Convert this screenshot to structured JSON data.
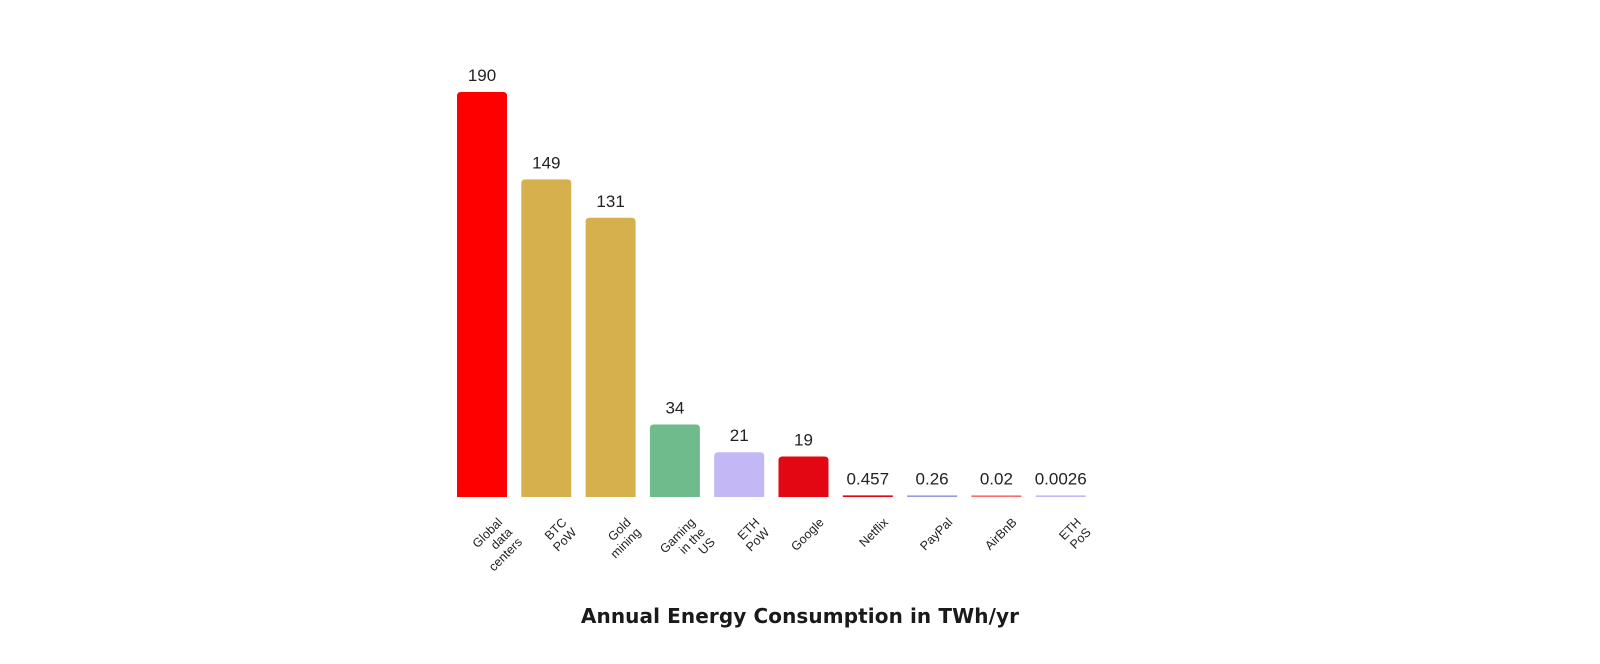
{
  "chart_data": {
    "type": "bar",
    "title": "Annual Energy Consumption in TWh/yr",
    "xlabel": "",
    "ylabel": "",
    "ylim": [
      0,
      190
    ],
    "grid": false,
    "categories": [
      {
        "lines": [
          "Global",
          "data",
          "centers"
        ],
        "value": 190,
        "label": "190",
        "color": "#ff0000"
      },
      {
        "lines": [
          "BTC",
          "PoW"
        ],
        "value": 149,
        "label": "149",
        "color": "#d6b04c"
      },
      {
        "lines": [
          "Gold",
          "mining"
        ],
        "value": 131,
        "label": "131",
        "color": "#d6b04c"
      },
      {
        "lines": [
          "Gaming",
          "in the",
          "US"
        ],
        "value": 34,
        "label": "34",
        "color": "#6fbb8b"
      },
      {
        "lines": [
          "ETH",
          "PoW"
        ],
        "value": 21,
        "label": "21",
        "color": "#c3b8f5"
      },
      {
        "lines": [
          "Google"
        ],
        "value": 19,
        "label": "19",
        "color": "#e30613"
      },
      {
        "lines": [
          "Netflix"
        ],
        "value": 0.457,
        "label": "0.457",
        "color": "#e30613"
      },
      {
        "lines": [
          "PayPal"
        ],
        "value": 0.26,
        "label": "0.26",
        "color": "#9a9ae0"
      },
      {
        "lines": [
          "AirBnB"
        ],
        "value": 0.02,
        "label": "0.02",
        "color": "#ff6b6b"
      },
      {
        "lines": [
          "ETH",
          "PoS"
        ],
        "value": 0.0026,
        "label": "0.0026",
        "color": "#c3b8f5"
      }
    ]
  }
}
